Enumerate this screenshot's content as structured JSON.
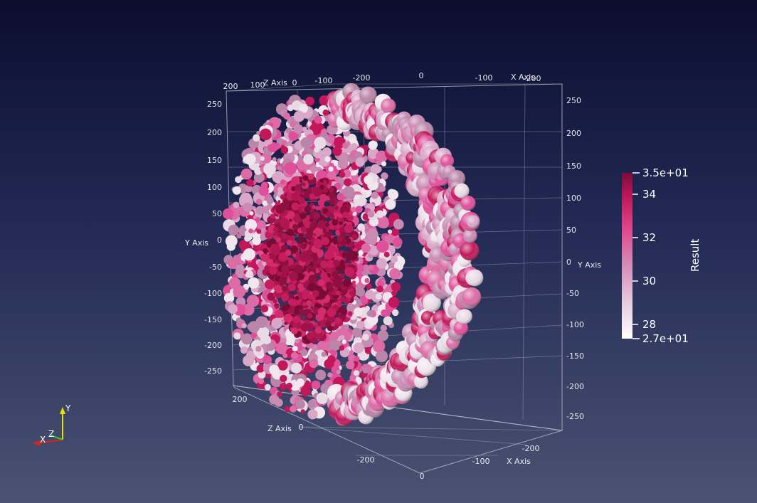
{
  "axes": {
    "y_axis_title": "Y Axis",
    "x_axis_title": "X Axis",
    "z_axis_title": "Z Axis",
    "left_y_ticks": [
      "250",
      "200",
      "150",
      "100",
      "50",
      "0",
      "-50",
      "-100",
      "-150",
      "-200",
      "-250"
    ],
    "right_y_ticks": [
      "250",
      "200",
      "150",
      "100",
      "50",
      "0",
      "-50",
      "-100",
      "-150",
      "-200",
      "-250"
    ],
    "top_x_ticks": [
      "0",
      "-100",
      "-200"
    ],
    "top_z_ticks": [
      "200",
      "100",
      "0",
      "-100",
      "-200"
    ],
    "bottom_z_ticks": [
      "200",
      "0",
      "-200"
    ],
    "bottom_x_ticks": [
      "0",
      "-100",
      "-200"
    ]
  },
  "colorbar": {
    "title": "Result",
    "max_label": "3.5e+01",
    "min_label": "2.7e+01",
    "tick_labels": [
      "34",
      "32",
      "30",
      "28"
    ],
    "colors": [
      "#7e0a3a",
      "#c2185b",
      "#e04a8f",
      "#d58ab8",
      "#e8d0e2",
      "#ffffff"
    ]
  },
  "orientation": {
    "x_label": "X",
    "y_label": "Y",
    "z_label": "Z",
    "x_color": "#e0201c",
    "y_color": "#e8e000",
    "z_color": "#2fd42f"
  },
  "sphere_colors": [
    "#e9dbe6",
    "#d9a8c8",
    "#c98bb4",
    "#e0509a",
    "#c2185b",
    "#f1e6ee",
    "#b985a8",
    "#dc6ba6"
  ],
  "core_colors": [
    "#8e1040",
    "#b01650",
    "#c51d5e",
    "#7a0b35",
    "#d22c6c",
    "#a0124a"
  ]
}
